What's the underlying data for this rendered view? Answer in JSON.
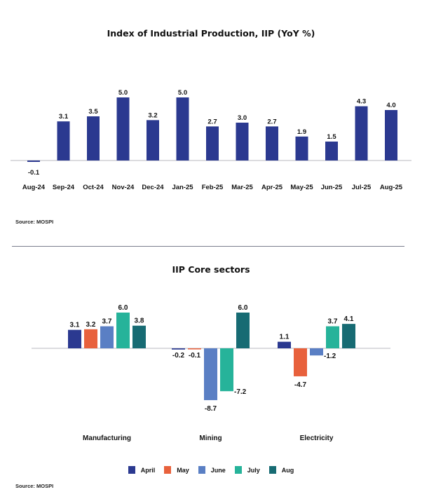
{
  "charts": {
    "top_source": "Source: MOSPI",
    "bottom_source": "Source: MOSPI"
  },
  "chart_data": [
    {
      "type": "bar",
      "title": "Index of Industrial Production, IIP (YoY %)",
      "xlabel": "",
      "ylabel": "",
      "categories": [
        "Aug-24",
        "Sep-24",
        "Oct-24",
        "Nov-24",
        "Dec-24",
        "Jan-25",
        "Feb-25",
        "Mar-25",
        "Apr-25",
        "May-25",
        "Jun-25",
        "Jul-25",
        "Aug-25"
      ],
      "values": [
        -0.1,
        3.1,
        3.5,
        5.0,
        3.2,
        5.0,
        2.7,
        3.0,
        2.7,
        1.9,
        1.5,
        4.3,
        4.0
      ],
      "value_labels": [
        "-0.1",
        "3.1",
        "3.5",
        "5.0",
        "3.2",
        "5.0",
        "2.7",
        "3.0",
        "2.7",
        "1.9",
        "1.5",
        "4.3",
        "4.0"
      ],
      "color": "#2b3990",
      "grid": false,
      "legend": "none",
      "source": "Source: MOSPI"
    },
    {
      "type": "bar",
      "title": "IIP Core sectors",
      "xlabel": "",
      "ylabel": "",
      "categories": [
        "Manufacturing",
        "Mining",
        "Electricity"
      ],
      "series": [
        {
          "name": "April",
          "color": "#2b3990",
          "values": [
            3.1,
            -0.2,
            1.1
          ],
          "labels": [
            "3.1",
            "-0.2",
            "1.1"
          ]
        },
        {
          "name": "May",
          "color": "#e8613c",
          "values": [
            3.2,
            -0.1,
            -4.7
          ],
          "labels": [
            "3.2",
            "-0.1",
            "-4.7"
          ]
        },
        {
          "name": "June",
          "color": "#5a7fc4",
          "values": [
            3.7,
            -8.7,
            -1.2
          ],
          "labels": [
            "3.7",
            "-8.7",
            "-1.2"
          ]
        },
        {
          "name": "July",
          "color": "#26b39a",
          "values": [
            6.0,
            -7.2,
            3.7
          ],
          "labels": [
            "6.0",
            "-7.2",
            "3.7"
          ]
        },
        {
          "name": "Aug",
          "color": "#176b73",
          "values": [
            3.8,
            6.0,
            4.1
          ],
          "labels": [
            "3.8",
            "6.0",
            "4.1"
          ]
        }
      ],
      "grid": false,
      "legend": "bottom-center",
      "source": "Source: MOSPI"
    }
  ]
}
